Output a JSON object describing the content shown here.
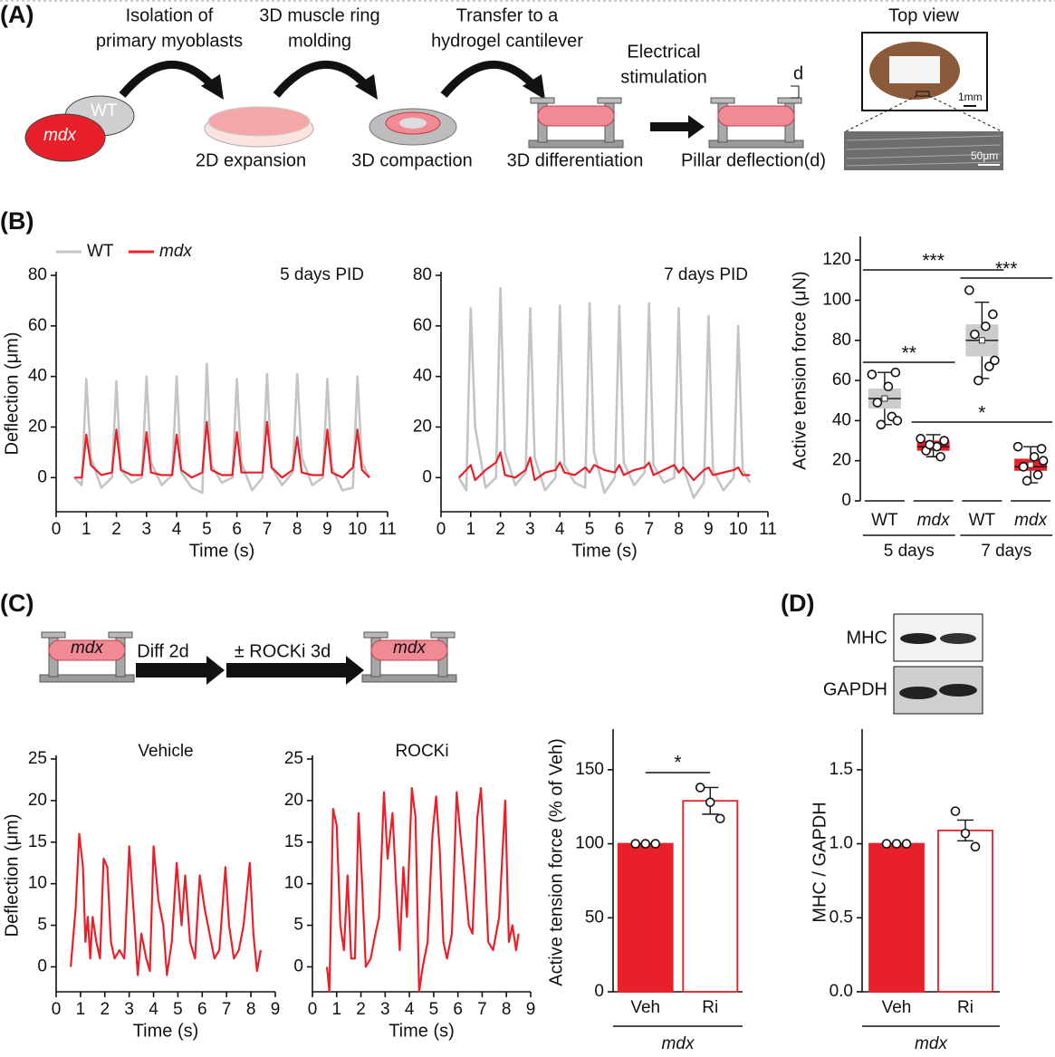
{
  "panel_a": {
    "label": "(A)",
    "mouse_labels": [
      "WT",
      "mdx"
    ],
    "steps": [
      [
        "Isolation of",
        "primary myoblasts"
      ],
      [
        "3D muscle ring",
        "molding"
      ],
      [
        "Transfer to a",
        "hydrogel cantilever"
      ],
      [
        "Electrical",
        "stimulation"
      ]
    ],
    "stages": [
      "2D expansion",
      "3D compaction",
      "3D differentiation",
      "Pillar deflection(d)"
    ],
    "deflection_symbol": "d",
    "top_view": {
      "title": "Top view",
      "scale_bars": [
        "1mm",
        "50μm"
      ]
    }
  },
  "panel_b": {
    "label": "(B)"
  },
  "panel_c": {
    "label": "(C)",
    "construct_label": "mdx",
    "steps": [
      "Diff 2d",
      "± ROCKi 3d"
    ],
    "final_label": "mdx"
  },
  "panel_d": {
    "label": "(D)",
    "blot_rows": [
      "MHC",
      "GAPDH"
    ]
  },
  "chart_data": [
    {
      "type": "line",
      "title": "5 days PID",
      "x_label": "Time (s)",
      "y_label": "Deflection (μm)",
      "x": [
        0.6,
        0.85,
        1,
        1.15,
        1.5,
        1.85,
        2,
        2.15,
        2.5,
        2.85,
        3,
        3.15,
        3.5,
        3.85,
        4,
        4.15,
        4.5,
        4.85,
        5,
        5.15,
        5.5,
        5.85,
        6,
        6.15,
        6.5,
        6.85,
        7,
        7.15,
        7.5,
        7.85,
        8,
        8.15,
        8.5,
        8.85,
        9,
        9.15,
        9.5,
        9.85,
        10,
        10.15,
        10.4
      ],
      "series": [
        {
          "name": "WT",
          "color": "#c4c4c4",
          "values": [
            0,
            -3,
            39,
            8,
            -4,
            0,
            38,
            3,
            -2,
            0,
            40,
            6,
            -3,
            1,
            40,
            2,
            -4,
            -6,
            45,
            5,
            -2,
            0,
            39,
            6,
            -5,
            0,
            41,
            4,
            -3,
            2,
            41,
            8,
            -3,
            0,
            39,
            4,
            -5,
            -4,
            40,
            6,
            0
          ]
        },
        {
          "name": "mdx",
          "color": "#e8202a",
          "values": [
            0,
            0,
            17,
            5,
            1,
            2,
            19,
            3,
            1,
            1,
            18,
            2,
            1,
            1,
            17,
            3,
            0,
            2,
            22,
            3,
            1,
            1,
            18,
            2,
            2,
            2,
            22,
            4,
            0,
            3,
            16,
            2,
            1,
            1,
            19,
            2,
            0,
            4,
            19,
            3,
            0
          ]
        }
      ],
      "xlim": [
        0,
        11
      ],
      "xticks": [
        0,
        1,
        2,
        3,
        4,
        5,
        6,
        7,
        8,
        9,
        10,
        11
      ],
      "ylim": [
        -13.5,
        80
      ],
      "yticks": [
        0,
        20,
        40,
        60,
        80
      ],
      "legend": "top-left"
    },
    {
      "type": "line",
      "title": "7 days PID",
      "x_label": "Time (s)",
      "x": [
        0.6,
        0.85,
        1,
        1.15,
        1.5,
        1.85,
        2,
        2.15,
        2.5,
        2.85,
        3,
        3.15,
        3.5,
        3.85,
        4,
        4.15,
        4.5,
        4.85,
        5,
        5.15,
        5.5,
        5.85,
        6,
        6.15,
        6.5,
        6.85,
        7,
        7.15,
        7.5,
        7.85,
        8,
        8.15,
        8.5,
        8.85,
        9,
        9.15,
        9.5,
        9.85,
        10,
        10.15,
        10.4
      ],
      "series": [
        {
          "color": "#c4c4c4",
          "values": [
            0,
            -5,
            67,
            20,
            -4,
            0,
            75,
            10,
            -3,
            2,
            67,
            8,
            -5,
            0,
            68,
            5,
            -2,
            -4,
            69,
            10,
            -6,
            0,
            68,
            6,
            -3,
            2,
            69,
            5,
            -2,
            0,
            67,
            4,
            -8,
            -2,
            64,
            3,
            -5,
            0,
            60,
            3,
            -2
          ]
        },
        {
          "color": "#e8202a",
          "values": [
            0,
            3,
            5,
            -1,
            3,
            6,
            10,
            1,
            0,
            3,
            8,
            -1,
            2,
            3,
            6,
            2,
            1,
            4,
            2,
            5,
            3,
            2,
            5,
            1,
            3,
            4,
            6,
            1,
            3,
            5,
            2,
            4,
            -1,
            3,
            4,
            1,
            2,
            3,
            4,
            1,
            1
          ]
        }
      ],
      "xlim": [
        0,
        11
      ],
      "xticks": [
        0,
        1,
        2,
        3,
        4,
        5,
        6,
        7,
        8,
        9,
        10,
        11
      ],
      "ylim": [
        -13.5,
        80
      ],
      "yticks": [
        0,
        20,
        40,
        60,
        80
      ]
    },
    {
      "type": "box",
      "y_label": "Active tension force (μN)",
      "categories": [
        "WT",
        "mdx",
        "WT",
        "mdx"
      ],
      "groups": [
        "5 days",
        "7 days"
      ],
      "boxes": [
        {
          "color": "#cccccc",
          "min": 38,
          "q1": 46,
          "median": 51,
          "mean": 51,
          "q3": 56,
          "max": 64,
          "points": [
            63,
            64,
            57,
            49,
            42,
            38,
            40
          ]
        },
        {
          "color": "#e8202a",
          "min": 22,
          "q1": 25,
          "median": 27,
          "mean": 27,
          "q3": 30,
          "max": 33,
          "points": [
            31,
            30,
            27,
            25,
            22,
            28
          ]
        },
        {
          "color": "#cccccc",
          "min": 61,
          "q1": 72,
          "median": 80,
          "mean": 80,
          "q3": 88,
          "max": 99,
          "points": [
            105,
            93,
            87,
            83,
            67,
            60,
            70
          ]
        },
        {
          "color": "#e8202a",
          "min": 9,
          "q1": 15,
          "median": 17,
          "mean": 18,
          "q3": 21,
          "max": 27,
          "points": [
            27,
            26,
            22,
            17,
            13,
            10,
            20
          ]
        }
      ],
      "ylim": [
        0,
        130
      ],
      "yticks": [
        0,
        20,
        40,
        60,
        80,
        100,
        120
      ],
      "annotations": [
        "***",
        "**",
        "***",
        "*"
      ]
    },
    {
      "type": "line",
      "title": "Vehicle",
      "x_label": "Time (s)",
      "y_label": "Deflection (μm)",
      "x": [
        0.6,
        0.8,
        0.95,
        1.1,
        1.2,
        1.3,
        1.4,
        1.5,
        1.65,
        1.8,
        1.95,
        2.1,
        2.25,
        2.4,
        2.6,
        2.8,
        3.0,
        3.2,
        3.35,
        3.5,
        3.7,
        3.85,
        4.0,
        4.2,
        4.4,
        4.55,
        4.75,
        4.95,
        5.15,
        5.3,
        5.5,
        5.7,
        5.9,
        6.1,
        6.3,
        6.5,
        6.7,
        6.95,
        7.1,
        7.3,
        7.5,
        7.7,
        7.95,
        8.1,
        8.25,
        8.4
      ],
      "series": [
        {
          "color": "#e8202a",
          "values": [
            0,
            7,
            16,
            12,
            3,
            6,
            1,
            6,
            3,
            1,
            13,
            12,
            3,
            1,
            2,
            1,
            14.5,
            6,
            -1,
            4,
            1,
            -0.5,
            14.5,
            8,
            5,
            -1,
            3,
            12.5,
            5,
            11,
            3,
            1,
            11,
            7,
            4,
            1,
            2,
            12,
            5,
            1,
            2,
            5,
            12.5,
            4,
            -0.5,
            2
          ]
        }
      ],
      "xlim": [
        0,
        9
      ],
      "xticks": [
        0,
        1,
        2,
        3,
        4,
        5,
        6,
        7,
        8,
        9
      ],
      "ylim": [
        -3,
        25
      ],
      "yticks": [
        0,
        5,
        10,
        15,
        20,
        25
      ]
    },
    {
      "type": "line",
      "title": "ROCKi",
      "x_label": "Time (s)",
      "x": [
        0.6,
        0.7,
        0.85,
        1.0,
        1.15,
        1.3,
        1.45,
        1.6,
        1.75,
        1.9,
        2.05,
        2.2,
        2.4,
        2.6,
        2.75,
        2.95,
        3.1,
        3.3,
        3.45,
        3.6,
        3.75,
        3.9,
        4.1,
        4.25,
        4.4,
        4.55,
        4.75,
        4.95,
        5.1,
        5.25,
        5.4,
        5.55,
        5.75,
        5.95,
        6.1,
        6.3,
        6.45,
        6.6,
        6.8,
        6.95,
        7.1,
        7.25,
        7.45,
        7.7,
        7.95,
        8.1,
        8.25,
        8.4,
        8.5
      ],
      "series": [
        {
          "color": "#e8202a",
          "values": [
            0,
            -3,
            19,
            17,
            5,
            2,
            11,
            1,
            1,
            18.5,
            10,
            0,
            1,
            4,
            6,
            21,
            13,
            18.5,
            10,
            2,
            12,
            6,
            21.5,
            18,
            -3,
            0,
            3,
            16,
            20.5,
            14,
            3,
            1,
            4,
            21,
            16,
            10,
            5,
            4,
            18,
            21.5,
            13,
            3,
            2,
            6,
            20,
            3,
            5,
            2,
            4
          ]
        }
      ],
      "xlim": [
        0,
        9
      ],
      "xticks": [
        0,
        1,
        2,
        3,
        4,
        5,
        6,
        7,
        8,
        9
      ],
      "ylim": [
        -3,
        25
      ],
      "yticks": [
        0,
        5,
        10,
        15,
        20,
        25
      ]
    },
    {
      "type": "bar",
      "y_label": "Active tension force (% of Veh)",
      "categories": [
        "Veh",
        "Ri"
      ],
      "group_label": "mdx",
      "values": [
        100,
        129
      ],
      "errors": [
        0,
        9
      ],
      "points": [
        [
          100,
          100,
          100
        ],
        [
          138,
          128,
          117
        ]
      ],
      "color": "#e8202a",
      "filled": [
        true,
        false
      ],
      "ylim": [
        0,
        175
      ],
      "yticks": [
        0,
        50,
        100,
        150
      ],
      "annotations": [
        "*"
      ]
    },
    {
      "type": "bar",
      "y_label": "MHC / GAPDH",
      "categories": [
        "Veh",
        "Ri"
      ],
      "group_label": "mdx",
      "values": [
        1,
        1.09
      ],
      "errors": [
        0,
        0.07
      ],
      "points": [
        [
          1,
          1,
          1
        ],
        [
          1.22,
          1.07,
          0.98
        ]
      ],
      "color": "#e8202a",
      "filled": [
        true,
        false
      ],
      "ylim": [
        0,
        1.75
      ],
      "yticks": [
        {
          "value": 0,
          "label": "0.0"
        },
        0.5,
        {
          "value": 1,
          "label": "1.0"
        },
        1.5
      ]
    }
  ]
}
